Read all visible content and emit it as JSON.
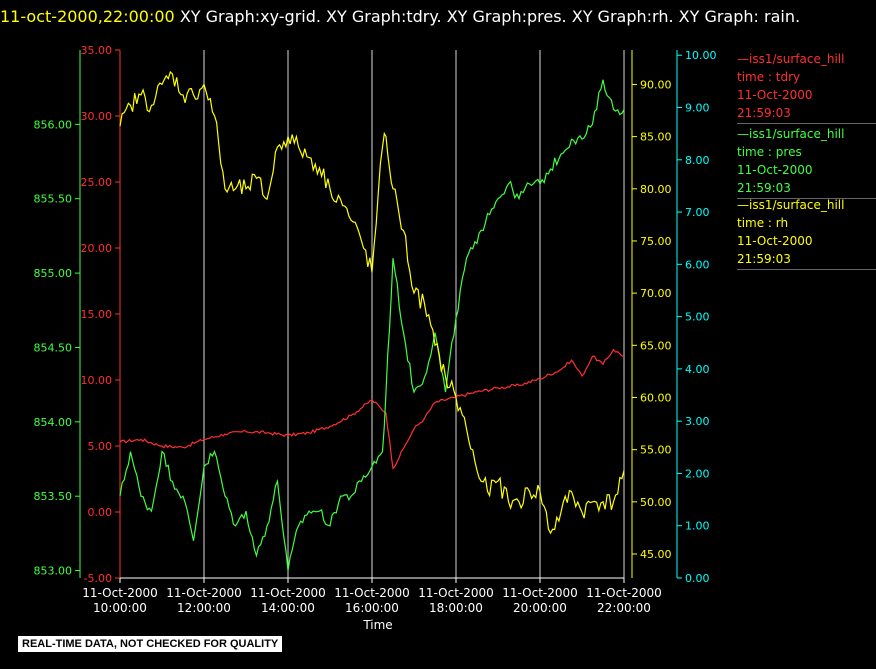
{
  "header": {
    "timestamp": "11-oct-2000,22:00:00",
    "title": " XY Graph:xy-grid.  XY Graph:tdry.  XY Graph:pres.  XY Graph:rh.  XY Graph: rain."
  },
  "disclaimer": "REAL-TIME DATA, NOT CHECKED FOR QUALITY",
  "legend": [
    {
      "dash": "—",
      "source": "iss1/surface_hill",
      "variable": "time : tdry",
      "date": "11-Oct-2000",
      "time": "21:59:03",
      "color": "#ff3030"
    },
    {
      "dash": "—",
      "source": "iss1/surface_hill",
      "variable": "time : pres",
      "date": "11-Oct-2000",
      "time": "21:59:03",
      "color": "#40ff40"
    },
    {
      "dash": "—",
      "source": "iss1/surface_hill",
      "variable": "time : rh",
      "date": "11-Oct-2000",
      "time": "21:59:03",
      "color": "#ffff00"
    }
  ],
  "chart_data": {
    "type": "line",
    "xlabel": "Time",
    "x_ticks": [
      {
        "date": "11-Oct-2000",
        "time": "10:00:00"
      },
      {
        "date": "11-Oct-2000",
        "time": "12:00:00"
      },
      {
        "date": "11-Oct-2000",
        "time": "14:00:00"
      },
      {
        "date": "11-Oct-2000",
        "time": "16:00:00"
      },
      {
        "date": "11-Oct-2000",
        "time": "18:00:00"
      },
      {
        "date": "11-Oct-2000",
        "time": "20:00:00"
      },
      {
        "date": "11-Oct-2000",
        "time": "22:00:00"
      }
    ],
    "xlim": [
      "10:00:00",
      "22:00:00"
    ],
    "grid": "vertical",
    "axes": [
      {
        "id": "pres",
        "color": "#40ff40",
        "ylim": [
          852.95,
          856.5
        ],
        "ticks": [
          "853.00",
          "853.50",
          "854.00",
          "854.50",
          "855.00",
          "855.50",
          "856.00"
        ]
      },
      {
        "id": "tdry",
        "color": "#ff3030",
        "ylim": [
          -5,
          35
        ],
        "ticks": [
          "-5.00",
          "0.00",
          "5.00",
          "10.00",
          "15.00",
          "20.00",
          "25.00",
          "30.00",
          "35.00"
        ]
      },
      {
        "id": "rh",
        "color": "#ffff00",
        "ylim": [
          42.7,
          93.3
        ],
        "ticks": [
          "45.00",
          "50.00",
          "55.00",
          "60.00",
          "65.00",
          "70.00",
          "75.00",
          "80.00",
          "85.00",
          "90.00"
        ]
      },
      {
        "id": "rain",
        "color": "#00ffff",
        "ylim": [
          0,
          10.1
        ],
        "ticks": [
          "0.00",
          "1.00",
          "2.00",
          "3.00",
          "4.00",
          "5.00",
          "6.00",
          "7.00",
          "8.00",
          "9.00",
          "10.00"
        ]
      }
    ],
    "series": [
      {
        "axis": "tdry",
        "color": "#ff3030",
        "x": [
          "10:00",
          "10:30",
          "11:00",
          "11:30",
          "12:00",
          "12:30",
          "13:00",
          "13:30",
          "14:00",
          "14:30",
          "15:00",
          "15:30",
          "16:00",
          "16:20",
          "16:30",
          "16:45",
          "17:00",
          "17:15",
          "17:30",
          "18:00",
          "18:30",
          "19:00",
          "19:30",
          "20:00",
          "20:30",
          "20:45",
          "21:00",
          "21:15",
          "21:30",
          "21:45",
          "22:00"
        ],
        "y": [
          5.3,
          5.5,
          5.0,
          4.9,
          5.5,
          5.9,
          6.1,
          6.0,
          5.8,
          6.0,
          6.5,
          7.3,
          8.5,
          7.5,
          3.3,
          4.8,
          6.3,
          7.1,
          8.3,
          8.7,
          9.1,
          9.4,
          9.6,
          10.1,
          10.8,
          11.5,
          10.3,
          11.8,
          11.2,
          12.3,
          11.8
        ]
      },
      {
        "axis": "pres",
        "color": "#40ff40",
        "x": [
          "10:00",
          "10:15",
          "10:30",
          "10:45",
          "11:00",
          "11:15",
          "11:30",
          "11:45",
          "12:00",
          "12:15",
          "12:30",
          "12:45",
          "13:00",
          "13:15",
          "13:30",
          "13:45",
          "14:00",
          "14:15",
          "14:30",
          "14:45",
          "15:00",
          "15:15",
          "15:30",
          "15:45",
          "16:00",
          "16:15",
          "16:20",
          "16:30",
          "16:45",
          "17:00",
          "17:15",
          "17:30",
          "17:45",
          "18:00",
          "18:15",
          "18:30",
          "18:45",
          "19:00",
          "19:15",
          "19:30",
          "19:45",
          "20:00",
          "20:15",
          "20:30",
          "20:45",
          "21:00",
          "21:15",
          "21:30",
          "21:45",
          "22:00"
        ],
        "y": [
          853.5,
          853.8,
          853.5,
          853.4,
          853.8,
          853.6,
          853.5,
          853.2,
          853.7,
          853.8,
          853.5,
          853.3,
          853.4,
          853.1,
          853.3,
          853.6,
          853.0,
          853.3,
          853.4,
          853.4,
          853.3,
          853.5,
          853.5,
          853.6,
          853.7,
          853.8,
          854.2,
          855.1,
          854.6,
          854.2,
          854.3,
          854.6,
          854.2,
          854.7,
          855.1,
          855.2,
          855.4,
          855.5,
          855.6,
          855.5,
          855.6,
          855.6,
          855.7,
          855.8,
          855.9,
          855.9,
          856.0,
          856.3,
          856.1,
          856.1
        ]
      },
      {
        "axis": "rh",
        "color": "#ffff00",
        "x": [
          "10:00",
          "10:15",
          "10:30",
          "10:45",
          "11:00",
          "11:15",
          "11:30",
          "11:45",
          "12:00",
          "12:15",
          "12:30",
          "12:45",
          "13:00",
          "13:15",
          "13:30",
          "13:45",
          "14:00",
          "14:15",
          "14:30",
          "14:45",
          "15:00",
          "15:15",
          "15:30",
          "15:45",
          "16:00",
          "16:15",
          "16:20",
          "16:30",
          "16:45",
          "17:00",
          "17:15",
          "17:30",
          "17:45",
          "18:00",
          "18:15",
          "18:30",
          "18:45",
          "19:00",
          "19:15",
          "19:30",
          "19:45",
          "20:00",
          "20:15",
          "20:30",
          "20:45",
          "21:00",
          "21:15",
          "21:30",
          "21:45",
          "22:00"
        ],
        "y": [
          86,
          88,
          89,
          88,
          90,
          91,
          89,
          89,
          90,
          87,
          80,
          80,
          80,
          81,
          79,
          84,
          85,
          84,
          83,
          82,
          80,
          79,
          77,
          75,
          72,
          84,
          85,
          80,
          76,
          70,
          69,
          65,
          62,
          60,
          57,
          53,
          51,
          52,
          50,
          50,
          51,
          51,
          47,
          49,
          51,
          49,
          50,
          50,
          50,
          53
        ]
      }
    ]
  }
}
